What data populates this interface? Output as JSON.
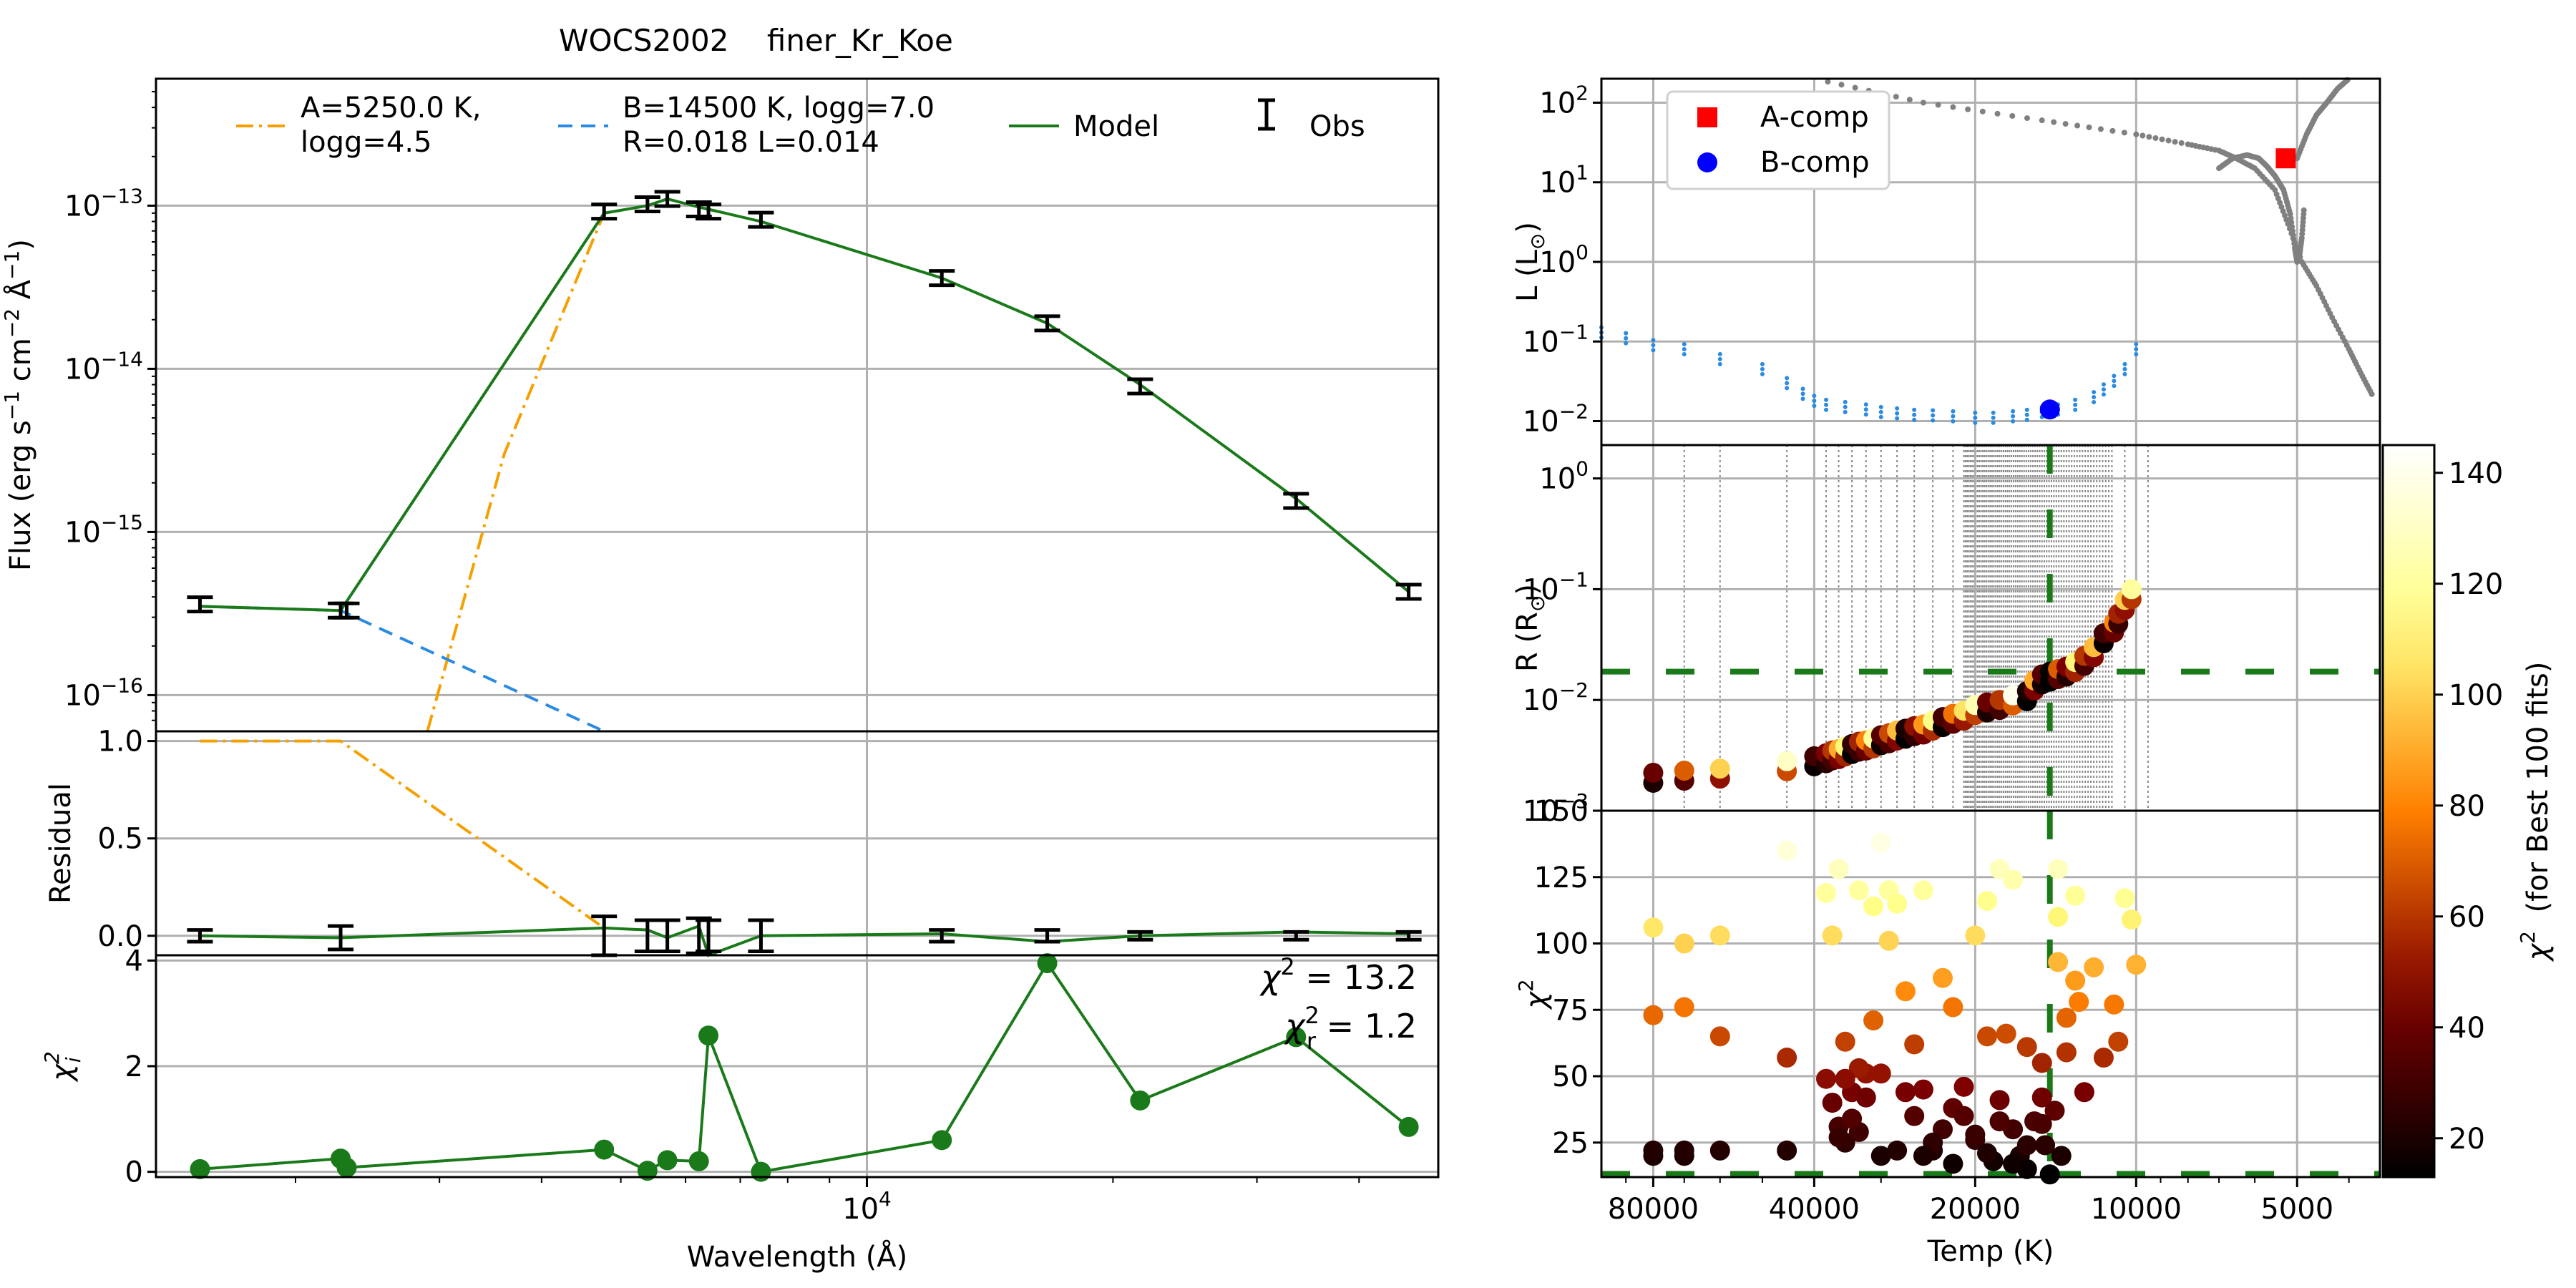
{
  "figure": {
    "title": "WOCS2002    finer_Kr_Koe"
  },
  "colors": {
    "model": "#1a7a1a",
    "acomp": "#f5a000",
    "bcomp": "#2a8be0",
    "obs": "#000000",
    "grid": "#b0b0b0",
    "isochrone": "#808080",
    "red_marker": "#ff0000",
    "blue_marker": "#0000ff"
  },
  "chart_data": [
    {
      "type": "line",
      "panel": "sed",
      "ylabel": "Flux (erg s$^{-1}$ cm$^{-2}$ Å$^{-1}$)",
      "ylabel_parts": [
        "Flux (erg s",
        "−1",
        " cm",
        "−2",
        " Å",
        "−1",
        ")"
      ],
      "yscale": "log",
      "ylim": [
        6e-17,
        6e-13
      ],
      "ytick_labels": [
        "10",
        "−13",
        "10",
        "−14",
        "10",
        "−15",
        "10",
        "−16"
      ],
      "ytick_values": [
        1e-13,
        1e-14,
        1e-15,
        1e-16
      ],
      "legend": {
        "placement": "top",
        "entries": [
          {
            "label_line1": "A=5250.0 K,",
            "label_line2": "logg=4.5",
            "style": "dashdot",
            "color_key": "acomp"
          },
          {
            "label_line1": "B=14500 K, logg=7.0",
            "label_line2": "R=0.018 L=0.014",
            "style": "dashed",
            "color_key": "bcomp"
          },
          {
            "label_line1": "Model",
            "label_line2": "",
            "style": "solid",
            "color_key": "model"
          },
          {
            "label_line1": "Obs",
            "label_line2": "",
            "style": "errorbar",
            "color_key": "obs"
          }
        ]
      },
      "observations": {
        "wavelength": [
          1528,
          2271,
          2310,
          4770,
          5390,
          5700,
          6230,
          6400,
          7420,
          12350,
          16620,
          21590,
          33500,
          46000
        ],
        "flux": [
          3.6e-16,
          3.3e-16,
          3.3e-16,
          9.2e-14,
          1.02e-13,
          1.1e-13,
          9.5e-14,
          9.2e-14,
          8.2e-14,
          3.6e-14,
          1.9e-14,
          7.8e-15,
          1.55e-15,
          4.3e-16
        ]
      },
      "series": [
        {
          "name": "Model",
          "color_key": "model",
          "x": [
            1528,
            2271,
            4770,
            5390,
            5700,
            6230,
            6400,
            7420,
            12350,
            16620,
            21590,
            33500,
            46000
          ],
          "y": [
            3.5e-16,
            3.3e-16,
            9e-14,
            1e-13,
            1.1e-13,
            9.8e-14,
            9.5e-14,
            8e-14,
            3.6e-14,
            1.9e-14,
            8e-15,
            1.6e-15,
            4.3e-16
          ]
        },
        {
          "name": "A=5250.0 K, logg=4.5",
          "color_key": "acomp",
          "x": [
            2900,
            3600,
            4770
          ],
          "y": [
            6e-17,
            3e-15,
            9e-14
          ]
        },
        {
          "name": "B=14500 K, logg=7.0 R=0.018 L=0.014",
          "color_key": "bcomp",
          "x": [
            1528,
            2271,
            4770
          ],
          "y": [
            3.5e-16,
            3.3e-16,
            6e-17
          ]
        }
      ]
    },
    {
      "type": "line",
      "panel": "residual",
      "ylabel": "Residual",
      "ylim": [
        -0.1,
        1.05
      ],
      "ytick_labels": [
        "0.0",
        "0.5",
        "1.0"
      ],
      "ytick_values": [
        0.0,
        0.5,
        1.0
      ],
      "model_x": [
        1528,
        2271,
        4770,
        5390,
        5700,
        6230,
        6400,
        7420,
        12350,
        16620,
        21590,
        33500,
        46000
      ],
      "model_y": [
        0.0,
        -0.01,
        0.04,
        0.03,
        -0.01,
        0.05,
        -0.1,
        0.0,
        0.01,
        -0.03,
        0.0,
        0.02,
        0.01
      ],
      "acomp_x": [
        1528,
        2271,
        4770
      ],
      "acomp_y": [
        1.0,
        1.0,
        0.04
      ],
      "obs_x": [
        1528,
        2271,
        4770,
        5390,
        5700,
        6230,
        6400,
        7420,
        12350,
        16620,
        21590,
        33500,
        46000
      ],
      "obs_y": [
        0.0,
        -0.01,
        0.0,
        0.0,
        0.0,
        0.0,
        0.0,
        0.0,
        0.0,
        0.0,
        0.0,
        0.0,
        0.0
      ],
      "obs_err": [
        0.03,
        0.06,
        0.1,
        0.08,
        0.08,
        0.09,
        0.08,
        0.08,
        0.03,
        0.03,
        0.02,
        0.02,
        0.02
      ]
    },
    {
      "type": "line",
      "panel": "chi2",
      "ylabel": "χ²ᵢ",
      "ylabel_main": "χ",
      "ylabel_sup": "2",
      "ylabel_sub": "i",
      "xlabel": "Wavelength (Å)",
      "xscale": "log",
      "xlim": [
        1350,
        50000
      ],
      "xtick_major_label": "10",
      "xtick_major_sup": "4",
      "xtick_major_value": 10000,
      "ylim": [
        -0.1,
        4.1
      ],
      "ytick_labels": [
        "0",
        "2",
        "4"
      ],
      "ytick_values": [
        0,
        2,
        4
      ],
      "x": [
        1528,
        2271,
        2310,
        4770,
        5390,
        5700,
        6230,
        6400,
        7420,
        12350,
        16620,
        21590,
        33500,
        46000
      ],
      "y": [
        0.05,
        0.25,
        0.08,
        0.42,
        0.02,
        0.22,
        0.2,
        2.58,
        0.0,
        0.6,
        3.95,
        1.35,
        2.55,
        0.85
      ],
      "x_order": [
        1528,
        2271,
        2310,
        4770,
        5390,
        5700,
        6230,
        6400,
        7420,
        12350,
        16620,
        21590,
        33500,
        46000
      ],
      "annotations": [
        {
          "prefix": "χ",
          "sup": "2",
          "text": " = 13.2"
        },
        {
          "prefix": "χ",
          "sup": "2",
          "sub": "r",
          "text": " = 1.2"
        }
      ]
    },
    {
      "type": "scatter",
      "panel": "hr",
      "ylabel_main": "L (L",
      "ylabel_sub": "⊙",
      "ylabel_end": ")",
      "xscale": "log",
      "xreverse": true,
      "xlim": [
        100000,
        3500
      ],
      "yscale": "log",
      "ylim": [
        0.005,
        200
      ],
      "ytick_values": [
        100,
        10,
        1,
        0.1,
        0.01
      ],
      "ytick_labels": [
        "10",
        "2",
        "10",
        "1",
        "10",
        "0",
        "10",
        "−1",
        "10",
        "−2"
      ],
      "legend": {
        "placement": "top-left",
        "entries": [
          {
            "label": "A-comp",
            "marker": "square",
            "color_key": "red_marker"
          },
          {
            "label": "B-comp",
            "marker": "circle",
            "color_key": "blue_marker"
          }
        ]
      },
      "A_point": {
        "temp": 5250,
        "lum": 20
      },
      "B_point": {
        "temp": 14500,
        "lum": 0.014
      },
      "wd_track": {
        "temp": [
          100000,
          90000,
          80000,
          70000,
          60000,
          50000,
          45000,
          42000,
          40000,
          38000,
          35000,
          32000,
          30000,
          28000,
          26000,
          24000,
          22000,
          20000,
          18500,
          17000,
          16000,
          15000,
          14000,
          13000,
          12000,
          11500,
          11000,
          10500,
          10000
        ],
        "lum": [
          0.13,
          0.11,
          0.09,
          0.08,
          0.06,
          0.045,
          0.03,
          0.022,
          0.018,
          0.016,
          0.015,
          0.014,
          0.013,
          0.0125,
          0.012,
          0.0118,
          0.0115,
          0.011,
          0.011,
          0.0115,
          0.012,
          0.013,
          0.014,
          0.016,
          0.02,
          0.025,
          0.032,
          0.045,
          0.08
        ]
      },
      "iso_track_1": {
        "temp": [
          40000,
          25000,
          15000,
          10000,
          8000,
          7000,
          6500,
          6000,
          5500,
          5200,
          4900,
          4600,
          4300,
          4000,
          3800,
          3600
        ],
        "lum": [
          200,
          100,
          60,
          40,
          30,
          25,
          20,
          15,
          8,
          3,
          1,
          0.5,
          0.2,
          0.08,
          0.04,
          0.02
        ]
      },
      "iso_track_2": {
        "temp": [
          7000,
          6600,
          6200,
          5900,
          5700,
          5500,
          5300,
          5150,
          5050,
          5000,
          4950,
          4900,
          4850
        ],
        "lum": [
          15,
          20,
          22,
          20,
          16,
          12,
          8,
          4,
          1.5,
          1.0,
          1.2,
          2,
          5
        ]
      },
      "iso_track_3": {
        "temp": [
          5000,
          4800,
          4600,
          4400,
          4200,
          4000
        ],
        "lum": [
          20,
          40,
          70,
          100,
          150,
          200
        ]
      }
    },
    {
      "type": "scatter",
      "panel": "radius",
      "ylabel_main": "R (R",
      "ylabel_sub": "⊙",
      "ylabel_end": ")",
      "xscale": "log",
      "xreverse": true,
      "xlim": [
        100000,
        3500
      ],
      "yscale": "log",
      "ylim": [
        0.001,
        2
      ],
      "ytick_values": [
        1,
        0.1,
        0.01,
        0.001
      ],
      "ytick_labels": [
        "10",
        "0",
        "10",
        "−1",
        "10",
        "−2",
        "10",
        "−3"
      ],
      "best_R": 0.018,
      "best_T": 14500,
      "temp": [
        80000,
        70000,
        60000,
        45000,
        40000,
        38000,
        37000,
        36000,
        35000,
        34000,
        33000,
        32000,
        31000,
        30000,
        29000,
        28000,
        27000,
        26000,
        25000,
        24000,
        23000,
        22000,
        21000,
        20000,
        19000,
        18000,
        17000,
        16000,
        15500,
        15000,
        14500,
        14000,
        13500,
        13000,
        12500,
        12000,
        11500,
        11000,
        10800,
        10500,
        10200
      ],
      "R": [
        0.0022,
        0.0023,
        0.0024,
        0.0028,
        0.0031,
        0.0033,
        0.0035,
        0.0036,
        0.0038,
        0.004,
        0.0042,
        0.0043,
        0.0045,
        0.0048,
        0.005,
        0.0053,
        0.0055,
        0.0058,
        0.006,
        0.0065,
        0.007,
        0.0075,
        0.008,
        0.009,
        0.0095,
        0.01,
        0.011,
        0.012,
        0.015,
        0.017,
        0.018,
        0.019,
        0.02,
        0.022,
        0.025,
        0.03,
        0.04,
        0.05,
        0.06,
        0.08,
        0.1
      ],
      "chi": [
        40,
        70,
        100,
        130,
        30,
        45,
        60,
        90,
        110,
        25,
        55,
        80,
        120,
        35,
        65,
        95,
        20,
        50,
        85,
        115,
        30,
        75,
        105,
        125,
        40,
        60,
        140,
        20,
        90,
        35,
        15,
        70,
        45,
        110,
        60,
        95,
        30,
        80,
        55,
        100,
        120
      ]
    },
    {
      "type": "scatter",
      "panel": "chisq",
      "ylabel_main": "χ",
      "ylabel_sup": "2",
      "xlabel": "Temp (K)",
      "xscale": "log",
      "xreverse": true,
      "xlim": [
        100000,
        3500
      ],
      "xtick_values": [
        80000,
        40000,
        20000,
        10000,
        5000
      ],
      "xtick_labels": [
        "80000",
        "40000",
        "20000",
        "10000",
        "5000"
      ],
      "ylim": [
        12,
        150
      ],
      "ytick_values": [
        25,
        50,
        75,
        100,
        125,
        150
      ],
      "ytick_labels": [
        "25",
        "50",
        "75",
        "100",
        "125",
        "150"
      ],
      "best_chi": 13.2,
      "best_T": 14500,
      "temp": [
        80000,
        80000,
        80000,
        80000,
        70000,
        70000,
        70000,
        70000,
        60000,
        60000,
        60000,
        45000,
        45000,
        45000,
        38000,
        37000,
        36000,
        36000,
        35000,
        35000,
        34000,
        33000,
        33000,
        32000,
        31000,
        30000,
        30000,
        29000,
        28000,
        27000,
        26000,
        25000,
        25000,
        24000,
        23000,
        22000,
        22000,
        21000,
        20000,
        20000,
        19000,
        19000,
        18500,
        18000,
        18000,
        17500,
        17000,
        17000,
        16500,
        16000,
        16000,
        15500,
        15000,
        15000,
        14800,
        14500,
        14200,
        14000,
        14000,
        13800,
        13500,
        13000,
        12800,
        12500,
        12000,
        11500,
        11000,
        10800,
        10500,
        10200,
        10000,
        20000,
        19000,
        18000,
        17000,
        16000,
        15000,
        14000,
        13500,
        13000,
        21000,
        22000,
        23000,
        24000,
        25000,
        26000,
        27000,
        28000,
        29000,
        30000,
        31000,
        32000,
        33000,
        34000,
        35000,
        36000,
        37000,
        38000
      ],
      "chi": [
        20,
        73,
        106,
        22,
        20,
        76,
        100,
        22,
        22,
        65,
        103,
        22,
        57,
        135,
        49,
        40,
        31,
        128,
        25,
        63,
        44,
        120,
        29,
        51,
        114,
        20,
        51,
        120,
        22,
        44,
        35,
        45,
        120,
        22,
        87,
        38,
        76,
        46,
        103,
        26,
        116,
        65,
        18,
        128,
        41,
        66,
        30,
        124,
        20,
        15,
        61,
        33,
        42,
        55,
        24,
        13,
        37,
        128,
        93,
        20,
        59,
        118,
        78,
        44,
        91,
        57,
        77,
        63,
        117,
        109,
        92,
        28,
        21,
        33,
        17,
        24,
        32,
        110,
        72,
        86,
        35,
        17,
        30,
        25,
        20,
        62,
        82,
        115,
        101,
        138,
        71,
        42,
        53,
        34,
        49,
        27,
        103,
        119
      ]
    },
    {
      "type": "heatmap",
      "panel": "colorbar",
      "label_main": "χ",
      "label_sup": "2",
      "label_end": "  (for Best 100 fits)",
      "range": [
        13,
        145
      ],
      "tick_values": [
        20,
        40,
        60,
        80,
        100,
        120,
        140
      ],
      "tick_labels": [
        "20",
        "40",
        "60",
        "80",
        "100",
        "120",
        "140"
      ]
    }
  ]
}
